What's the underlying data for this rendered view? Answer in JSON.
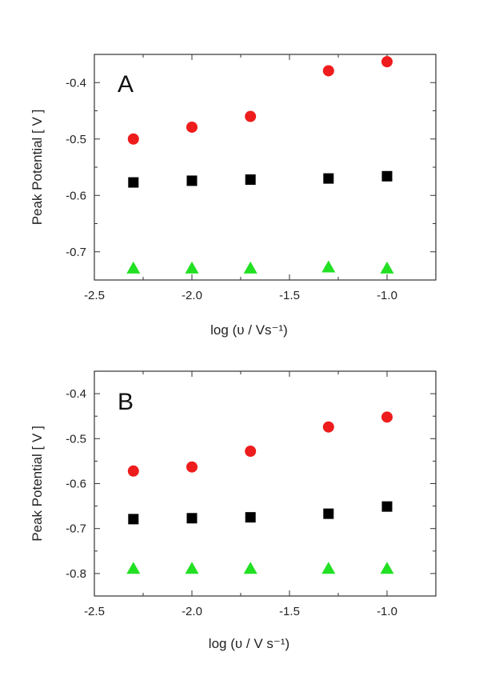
{
  "chart_data": [
    {
      "type": "scatter",
      "panel_label": "A",
      "xlabel": "log (υ / Vs⁻¹)",
      "ylabel": "Peak Potential  [ V ]",
      "xlim": [
        -2.5,
        -0.75
      ],
      "ylim": [
        -0.75,
        -0.35
      ],
      "xticks": [
        -2.5,
        -2.0,
        -1.5,
        -1.0
      ],
      "xtick_labels": [
        "-2.5",
        "-2.0",
        "-1.5",
        "-1.0"
      ],
      "yticks": [
        -0.4,
        -0.5,
        -0.6,
        -0.7
      ],
      "ytick_labels": [
        "-0.4",
        "-0.5",
        "-0.6",
        "-0.7"
      ],
      "grid": false,
      "legend": "none",
      "series": [
        {
          "marker": "circle",
          "color": "#ee1c1c",
          "x": [
            -2.3,
            -2.0,
            -1.7,
            -1.3,
            -1.0
          ],
          "y": [
            -0.5,
            -0.479,
            -0.46,
            -0.379,
            -0.363
          ]
        },
        {
          "marker": "square",
          "color": "#000000",
          "x": [
            -2.3,
            -2.0,
            -1.7,
            -1.3,
            -1.0
          ],
          "y": [
            -0.577,
            -0.574,
            -0.572,
            -0.57,
            -0.566
          ]
        },
        {
          "marker": "triangle",
          "color": "#22e022",
          "x": [
            -2.3,
            -2.0,
            -1.7,
            -1.3,
            -1.0
          ],
          "y": [
            -0.73,
            -0.73,
            -0.73,
            -0.728,
            -0.73
          ]
        }
      ]
    },
    {
      "type": "scatter",
      "panel_label": "B",
      "xlabel": "log (υ / V s⁻¹)",
      "ylabel": "Peak Potential [  V  ]",
      "xlim": [
        -2.5,
        -0.75
      ],
      "ylim": [
        -0.85,
        -0.35
      ],
      "xticks": [
        -2.5,
        -2.0,
        -1.5,
        -1.0
      ],
      "xtick_labels": [
        "-2.5",
        "-2.0",
        "-1.5",
        "-1.0"
      ],
      "yticks": [
        -0.4,
        -0.5,
        -0.6,
        -0.7,
        -0.8
      ],
      "ytick_labels": [
        "-0.4",
        "-0.5",
        "-0.6",
        "-0.7",
        "-0.8"
      ],
      "grid": false,
      "legend": "none",
      "series": [
        {
          "marker": "circle",
          "color": "#ee1c1c",
          "x": [
            -2.3,
            -2.0,
            -1.7,
            -1.3,
            -1.0
          ],
          "y": [
            -0.572,
            -0.563,
            -0.528,
            -0.474,
            -0.452
          ]
        },
        {
          "marker": "square",
          "color": "#000000",
          "x": [
            -2.3,
            -2.0,
            -1.7,
            -1.3,
            -1.0
          ],
          "y": [
            -0.679,
            -0.677,
            -0.675,
            -0.667,
            -0.651
          ]
        },
        {
          "marker": "triangle",
          "color": "#22e022",
          "x": [
            -2.3,
            -2.0,
            -1.7,
            -1.3,
            -1.0
          ],
          "y": [
            -0.79,
            -0.79,
            -0.79,
            -0.79,
            -0.79
          ]
        }
      ]
    }
  ]
}
